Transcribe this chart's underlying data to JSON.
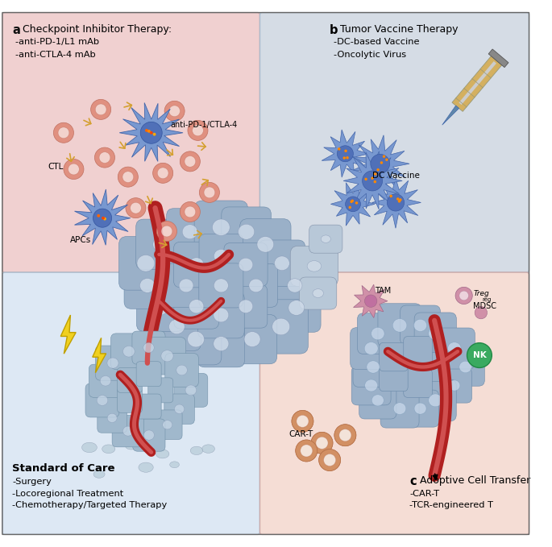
{
  "panel_a_bg": "#f0d0d0",
  "panel_b_bg": "#d5dce5",
  "panel_ll_bg": "#dde8f4",
  "panel_c_bg": "#f5ddd5",
  "cell_blue_dark": "#8098c0",
  "cell_blue_mid": "#a0b8d5",
  "cell_blue_light": "#c0d0e5",
  "cell_nucleus": "#c8d8ee",
  "vessel_red": "#c03030",
  "vessel_light": "#e06060",
  "ctl_pink": "#e09080",
  "ctl_nucleus_pink": "#d07060",
  "ab_color": "#d4a030",
  "spiky_blue": "#7090c8",
  "spiky_nucleus": "#5570a8",
  "lightning_yellow": "#f0d020",
  "syringe_tan": "#d4b060",
  "green_nk": "#3aaa60",
  "tam_pink": "#d090a8",
  "cart_orange": "#d09060",
  "text_color": "#111111",
  "panel_a_title_bold": "a",
  "panel_a_title": " Checkpoint Inhibitor Therapy:",
  "panel_a_b1": "-anti-PD-1/L1 mAb",
  "panel_a_b2": "-anti-CTLA-4 mAb",
  "panel_a_label_ctl": "CTL",
  "panel_a_label_apc": "APCs",
  "panel_a_label_anti": "anti-PD-1/CTLA-4",
  "panel_b_title_bold": "b",
  "panel_b_title": " Tumor Vaccine Therapy",
  "panel_b_b1": "-DC-based Vaccine",
  "panel_b_b2": "-Oncolytic Virus",
  "panel_b_label_dc": "DC Vaccine",
  "panel_ll_title": "Standard of Care",
  "panel_ll_b1": "-Surgery",
  "panel_ll_b2": "-Locoregional Treatment",
  "panel_ll_b3": "-Chemotherapy/Targeted Therapy",
  "panel_c_title_bold": "c",
  "panel_c_title": " Adoptive Cell Transfer",
  "panel_c_b1": "-CAR-T",
  "panel_c_b2": "-TCR-engineered T",
  "panel_c_label_tam": "TAM",
  "panel_c_label_treg": "Treg",
  "panel_c_label_mdsc": "MDSC",
  "panel_c_label_nk": "NK",
  "panel_c_label_cart": "CAR-T"
}
